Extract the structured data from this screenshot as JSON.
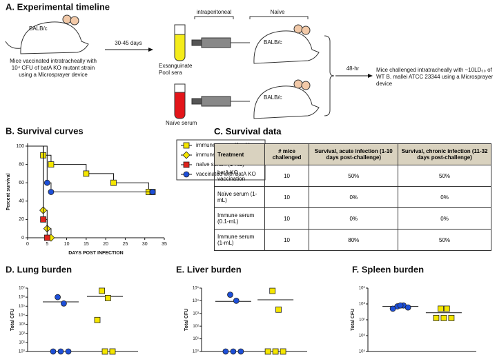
{
  "timeline": {
    "title": "A. Experimental timeline",
    "mouse_label": "BALB/c",
    "vaccination": "Mice vaccinated intratracheally with 10⁴ CFU of batA KO mutant strain using a Microsprayer device",
    "interval": "30-45 days",
    "immune_sera": "Exsanguinate Pool sera",
    "naive_serum": "Naïve serum",
    "route": "intraperitoneal",
    "recipients": "Naïve",
    "wait": "48-hr",
    "challenge": "Mice challenged intratracheally with ~10LD₅₀ of WT B. mallei ATCC 23344 using a Microsprayer device"
  },
  "chart_data": [
    {
      "type": "line",
      "step": true,
      "title": "B. Survival curves",
      "xlabel": "DAYS POST INFECTION",
      "ylabel": "Percent survival",
      "xlim": [
        0,
        35
      ],
      "xticks": [
        0,
        5,
        10,
        15,
        20,
        25,
        30,
        35
      ],
      "ylim": [
        0,
        100
      ],
      "yticks": [
        0,
        20,
        40,
        60,
        80,
        100
      ],
      "legend": "right",
      "series": [
        {
          "name": "immune serum (1-mL)",
          "color": "#f5e600",
          "marker": "square",
          "x": [
            0,
            4,
            6,
            15,
            22,
            31,
            32
          ],
          "values": [
            100,
            90,
            80,
            70,
            60,
            50,
            50
          ]
        },
        {
          "name": "immune serum (0.1-mL)",
          "color": "#f5e600",
          "marker": "diamond",
          "x": [
            0,
            4,
            5,
            6
          ],
          "values": [
            100,
            30,
            10,
            0
          ]
        },
        {
          "name": "naïve serum (1-mL)",
          "color": "#e0231c",
          "marker": "square",
          "x": [
            0,
            4,
            5
          ],
          "values": [
            100,
            20,
            0
          ]
        },
        {
          "name": "vaccinated with batA KO",
          "color": "#1d4fd8",
          "marker": "circle",
          "x": [
            0,
            5,
            6,
            32
          ],
          "values": [
            100,
            60,
            50,
            50
          ]
        }
      ]
    },
    {
      "type": "strip",
      "title": "D. Lung burden",
      "ylabel": "Total CFU",
      "yscale": "log",
      "ylim": [
        1,
        10000000
      ],
      "yticks": [
        {
          "value": 1,
          "label": "10⁰"
        },
        {
          "value": 10,
          "label": "10¹"
        },
        {
          "value": 100,
          "label": "10²"
        },
        {
          "value": 1000,
          "label": "10³"
        },
        {
          "value": 10000,
          "label": "10⁴"
        },
        {
          "value": 100000,
          "label": "10⁵"
        },
        {
          "value": 1000000,
          "label": "10⁶"
        },
        {
          "value": 10000000,
          "label": "10⁷"
        }
      ],
      "series": [
        {
          "color": "#1d4fd8",
          "marker": "circle",
          "values": [
            1000000,
            200000,
            1,
            1,
            1
          ],
          "mean": 300000
        },
        {
          "color": "#f5e600",
          "marker": "square",
          "values": [
            5000000,
            800000,
            3000,
            1,
            1
          ],
          "mean": 1200000
        }
      ]
    },
    {
      "type": "strip",
      "title": "E. Liver burden",
      "ylabel": "Total CFU",
      "yscale": "log",
      "ylim": [
        1,
        100000
      ],
      "yticks": [
        {
          "value": 1,
          "label": "10⁰"
        },
        {
          "value": 10,
          "label": "10¹"
        },
        {
          "value": 100,
          "label": "10²"
        },
        {
          "value": 1000,
          "label": "10³"
        },
        {
          "value": 10000,
          "label": "10⁴"
        },
        {
          "value": 100000,
          "label": "10⁵"
        }
      ],
      "series": [
        {
          "color": "#1d4fd8",
          "marker": "circle",
          "values": [
            30000,
            10000,
            1,
            1,
            1
          ],
          "mean": 9000
        },
        {
          "color": "#f5e600",
          "marker": "square",
          "values": [
            60000,
            2000,
            1,
            1,
            1
          ],
          "mean": 12000
        }
      ]
    },
    {
      "type": "strip",
      "title": "F. Spleen burden",
      "ylabel": "Total CFU",
      "yscale": "log",
      "ylim": [
        100000,
        1000000000
      ],
      "yticks": [
        {
          "value": 100000,
          "label": "10⁵"
        },
        {
          "value": 1000000,
          "label": "10⁶"
        },
        {
          "value": 10000000,
          "label": "10⁷"
        },
        {
          "value": 100000000,
          "label": "10⁸"
        },
        {
          "value": 1000000000,
          "label": "10⁹"
        }
      ],
      "series": [
        {
          "color": "#1d4fd8",
          "marker": "circle",
          "values": [
            70000000,
            80000000,
            50000000,
            80000000,
            60000000
          ],
          "mean": 70000000
        },
        {
          "color": "#f5e600",
          "marker": "square",
          "values": [
            50000000,
            50000000,
            13000000,
            13000000,
            13000000
          ],
          "mean": 28000000
        }
      ]
    }
  ],
  "table": {
    "title": "C. Survival data",
    "header": [
      "Treatment",
      "# mice challenged",
      "Survival, acute infection (1-10 days post-challenge)",
      "Survival, chronic infection (11-32 days post-challenge)"
    ],
    "rows": [
      [
        "batA KO vaccination",
        "10",
        "50%",
        "50%"
      ],
      [
        "Naïve serum (1-mL)",
        "10",
        "0%",
        "0%"
      ],
      [
        "Immune serum (0.1-mL)",
        "10",
        "0%",
        "0%"
      ],
      [
        "Immune serum (1-mL)",
        "10",
        "80%",
        "50%"
      ]
    ]
  }
}
